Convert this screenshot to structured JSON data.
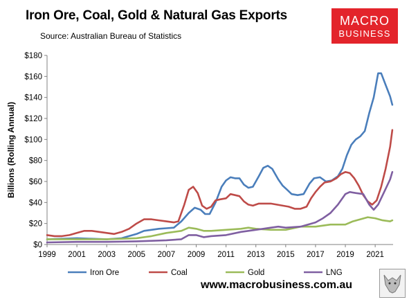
{
  "header": {
    "title": "Iron Ore, Coal, Gold & Natural Gas Exports",
    "source": "Source: Australian Bureau of Statistics"
  },
  "logo": {
    "line1": "MACRO",
    "line2": "BUSINESS",
    "color": "#e3242b"
  },
  "footer": {
    "url": "www.macrobusiness.com.au"
  },
  "chart_data": {
    "type": "line",
    "title": "Iron Ore, Coal, Gold & Natural Gas Exports",
    "xlabel": "",
    "ylabel": "Billions (Rolling Annual)",
    "xlim": [
      1999,
      2022.2
    ],
    "ylim": [
      0,
      180
    ],
    "x_ticks": [
      1999,
      2001,
      2003,
      2005,
      2007,
      2009,
      2011,
      2013,
      2015,
      2017,
      2019,
      2021
    ],
    "y_ticks": [
      0,
      20,
      40,
      60,
      80,
      100,
      120,
      140,
      160,
      180
    ],
    "y_tick_labels": [
      "$0",
      "$20",
      "$40",
      "$60",
      "$80",
      "$100",
      "$120",
      "$140",
      "$160",
      "$180"
    ],
    "grid": false,
    "legend": "bottom",
    "series": [
      {
        "name": "Iron Ore",
        "color": "#4a7ebb",
        "points": [
          [
            1999,
            5
          ],
          [
            2000,
            5.5
          ],
          [
            2001,
            6
          ],
          [
            2002,
            5.5
          ],
          [
            2003,
            5
          ],
          [
            2004,
            6
          ],
          [
            2005,
            10
          ],
          [
            2005.5,
            13
          ],
          [
            2006,
            14
          ],
          [
            2006.5,
            15
          ],
          [
            2007,
            15.5
          ],
          [
            2007.5,
            16
          ],
          [
            2008,
            22
          ],
          [
            2008.5,
            30
          ],
          [
            2008.9,
            35
          ],
          [
            2009.3,
            33
          ],
          [
            2009.6,
            29
          ],
          [
            2009.9,
            29
          ],
          [
            2010.3,
            40
          ],
          [
            2010.7,
            55
          ],
          [
            2011,
            61
          ],
          [
            2011.3,
            64
          ],
          [
            2011.6,
            63
          ],
          [
            2011.9,
            63
          ],
          [
            2012.2,
            57
          ],
          [
            2012.5,
            54
          ],
          [
            2012.8,
            55
          ],
          [
            2013.2,
            65
          ],
          [
            2013.5,
            73
          ],
          [
            2013.8,
            75
          ],
          [
            2014.1,
            72
          ],
          [
            2014.5,
            62
          ],
          [
            2014.8,
            56
          ],
          [
            2015.1,
            52
          ],
          [
            2015.4,
            48
          ],
          [
            2015.8,
            47
          ],
          [
            2016.2,
            48
          ],
          [
            2016.6,
            58
          ],
          [
            2016.9,
            63
          ],
          [
            2017.3,
            64
          ],
          [
            2017.7,
            60
          ],
          [
            2018.1,
            61
          ],
          [
            2018.5,
            65
          ],
          [
            2018.8,
            72
          ],
          [
            2019.1,
            85
          ],
          [
            2019.4,
            95
          ],
          [
            2019.7,
            100
          ],
          [
            2020,
            103
          ],
          [
            2020.3,
            108
          ],
          [
            2020.6,
            125
          ],
          [
            2020.9,
            140
          ],
          [
            2021.2,
            163
          ],
          [
            2021.4,
            163
          ],
          [
            2021.7,
            152
          ],
          [
            2022,
            141
          ],
          [
            2022.15,
            133
          ]
        ]
      },
      {
        "name": "Coal",
        "color": "#be4b48",
        "points": [
          [
            1999,
            9
          ],
          [
            1999.5,
            8
          ],
          [
            2000,
            8
          ],
          [
            2000.5,
            9
          ],
          [
            2001,
            11
          ],
          [
            2001.5,
            13
          ],
          [
            2002,
            13
          ],
          [
            2002.5,
            12
          ],
          [
            2003,
            11
          ],
          [
            2003.5,
            10
          ],
          [
            2004,
            12
          ],
          [
            2004.5,
            15
          ],
          [
            2005,
            20
          ],
          [
            2005.5,
            24
          ],
          [
            2006,
            24
          ],
          [
            2006.5,
            23
          ],
          [
            2007,
            22
          ],
          [
            2007.5,
            21
          ],
          [
            2007.8,
            22
          ],
          [
            2008.2,
            38
          ],
          [
            2008.5,
            52
          ],
          [
            2008.8,
            55
          ],
          [
            2009.1,
            49
          ],
          [
            2009.4,
            37
          ],
          [
            2009.7,
            34
          ],
          [
            2010,
            36
          ],
          [
            2010.3,
            42
          ],
          [
            2010.6,
            43
          ],
          [
            2011,
            44
          ],
          [
            2011.3,
            48
          ],
          [
            2011.6,
            47
          ],
          [
            2011.9,
            46
          ],
          [
            2012.2,
            41
          ],
          [
            2012.5,
            38
          ],
          [
            2012.8,
            37
          ],
          [
            2013.2,
            39
          ],
          [
            2013.6,
            39
          ],
          [
            2014,
            39
          ],
          [
            2014.4,
            38
          ],
          [
            2014.8,
            37
          ],
          [
            2015.2,
            36
          ],
          [
            2015.6,
            34
          ],
          [
            2016,
            34
          ],
          [
            2016.4,
            36
          ],
          [
            2016.7,
            44
          ],
          [
            2017,
            50
          ],
          [
            2017.3,
            55
          ],
          [
            2017.6,
            59
          ],
          [
            2018,
            60
          ],
          [
            2018.4,
            63
          ],
          [
            2018.7,
            67
          ],
          [
            2019,
            69
          ],
          [
            2019.3,
            68
          ],
          [
            2019.6,
            63
          ],
          [
            2019.9,
            56
          ],
          [
            2020.2,
            47
          ],
          [
            2020.5,
            41
          ],
          [
            2020.8,
            38
          ],
          [
            2021.1,
            42
          ],
          [
            2021.4,
            55
          ],
          [
            2021.7,
            72
          ],
          [
            2022,
            93
          ],
          [
            2022.15,
            109
          ]
        ]
      },
      {
        "name": "Gold",
        "color": "#9bbb59",
        "points": [
          [
            1999,
            5
          ],
          [
            2001,
            5
          ],
          [
            2003,
            5
          ],
          [
            2005,
            6
          ],
          [
            2006,
            8
          ],
          [
            2007,
            11
          ],
          [
            2008,
            13
          ],
          [
            2008.5,
            16
          ],
          [
            2009,
            15
          ],
          [
            2009.5,
            13
          ],
          [
            2010,
            13
          ],
          [
            2011,
            14
          ],
          [
            2012,
            15
          ],
          [
            2012.5,
            16
          ],
          [
            2013,
            15
          ],
          [
            2014,
            14
          ],
          [
            2015,
            14
          ],
          [
            2016,
            17
          ],
          [
            2017,
            17
          ],
          [
            2018,
            19
          ],
          [
            2019,
            19
          ],
          [
            2019.5,
            22
          ],
          [
            2020,
            24
          ],
          [
            2020.5,
            26
          ],
          [
            2021,
            25
          ],
          [
            2021.5,
            23
          ],
          [
            2022,
            22
          ],
          [
            2022.15,
            23
          ]
        ]
      },
      {
        "name": "LNG",
        "color": "#7f5fa1",
        "points": [
          [
            1999,
            2
          ],
          [
            2001,
            2.5
          ],
          [
            2003,
            2.5
          ],
          [
            2005,
            3
          ],
          [
            2007,
            4
          ],
          [
            2008,
            5
          ],
          [
            2008.5,
            9
          ],
          [
            2009,
            9
          ],
          [
            2009.5,
            7
          ],
          [
            2010,
            8
          ],
          [
            2011,
            9
          ],
          [
            2012,
            12
          ],
          [
            2013,
            14
          ],
          [
            2014,
            16
          ],
          [
            2014.5,
            17
          ],
          [
            2015,
            16
          ],
          [
            2016,
            17
          ],
          [
            2017,
            21
          ],
          [
            2017.5,
            25
          ],
          [
            2018,
            30
          ],
          [
            2018.5,
            38
          ],
          [
            2019,
            48
          ],
          [
            2019.3,
            50
          ],
          [
            2019.7,
            49
          ],
          [
            2020.2,
            48
          ],
          [
            2020.6,
            38
          ],
          [
            2020.9,
            33
          ],
          [
            2021.2,
            38
          ],
          [
            2021.6,
            50
          ],
          [
            2022,
            62
          ],
          [
            2022.15,
            69
          ]
        ]
      }
    ]
  }
}
